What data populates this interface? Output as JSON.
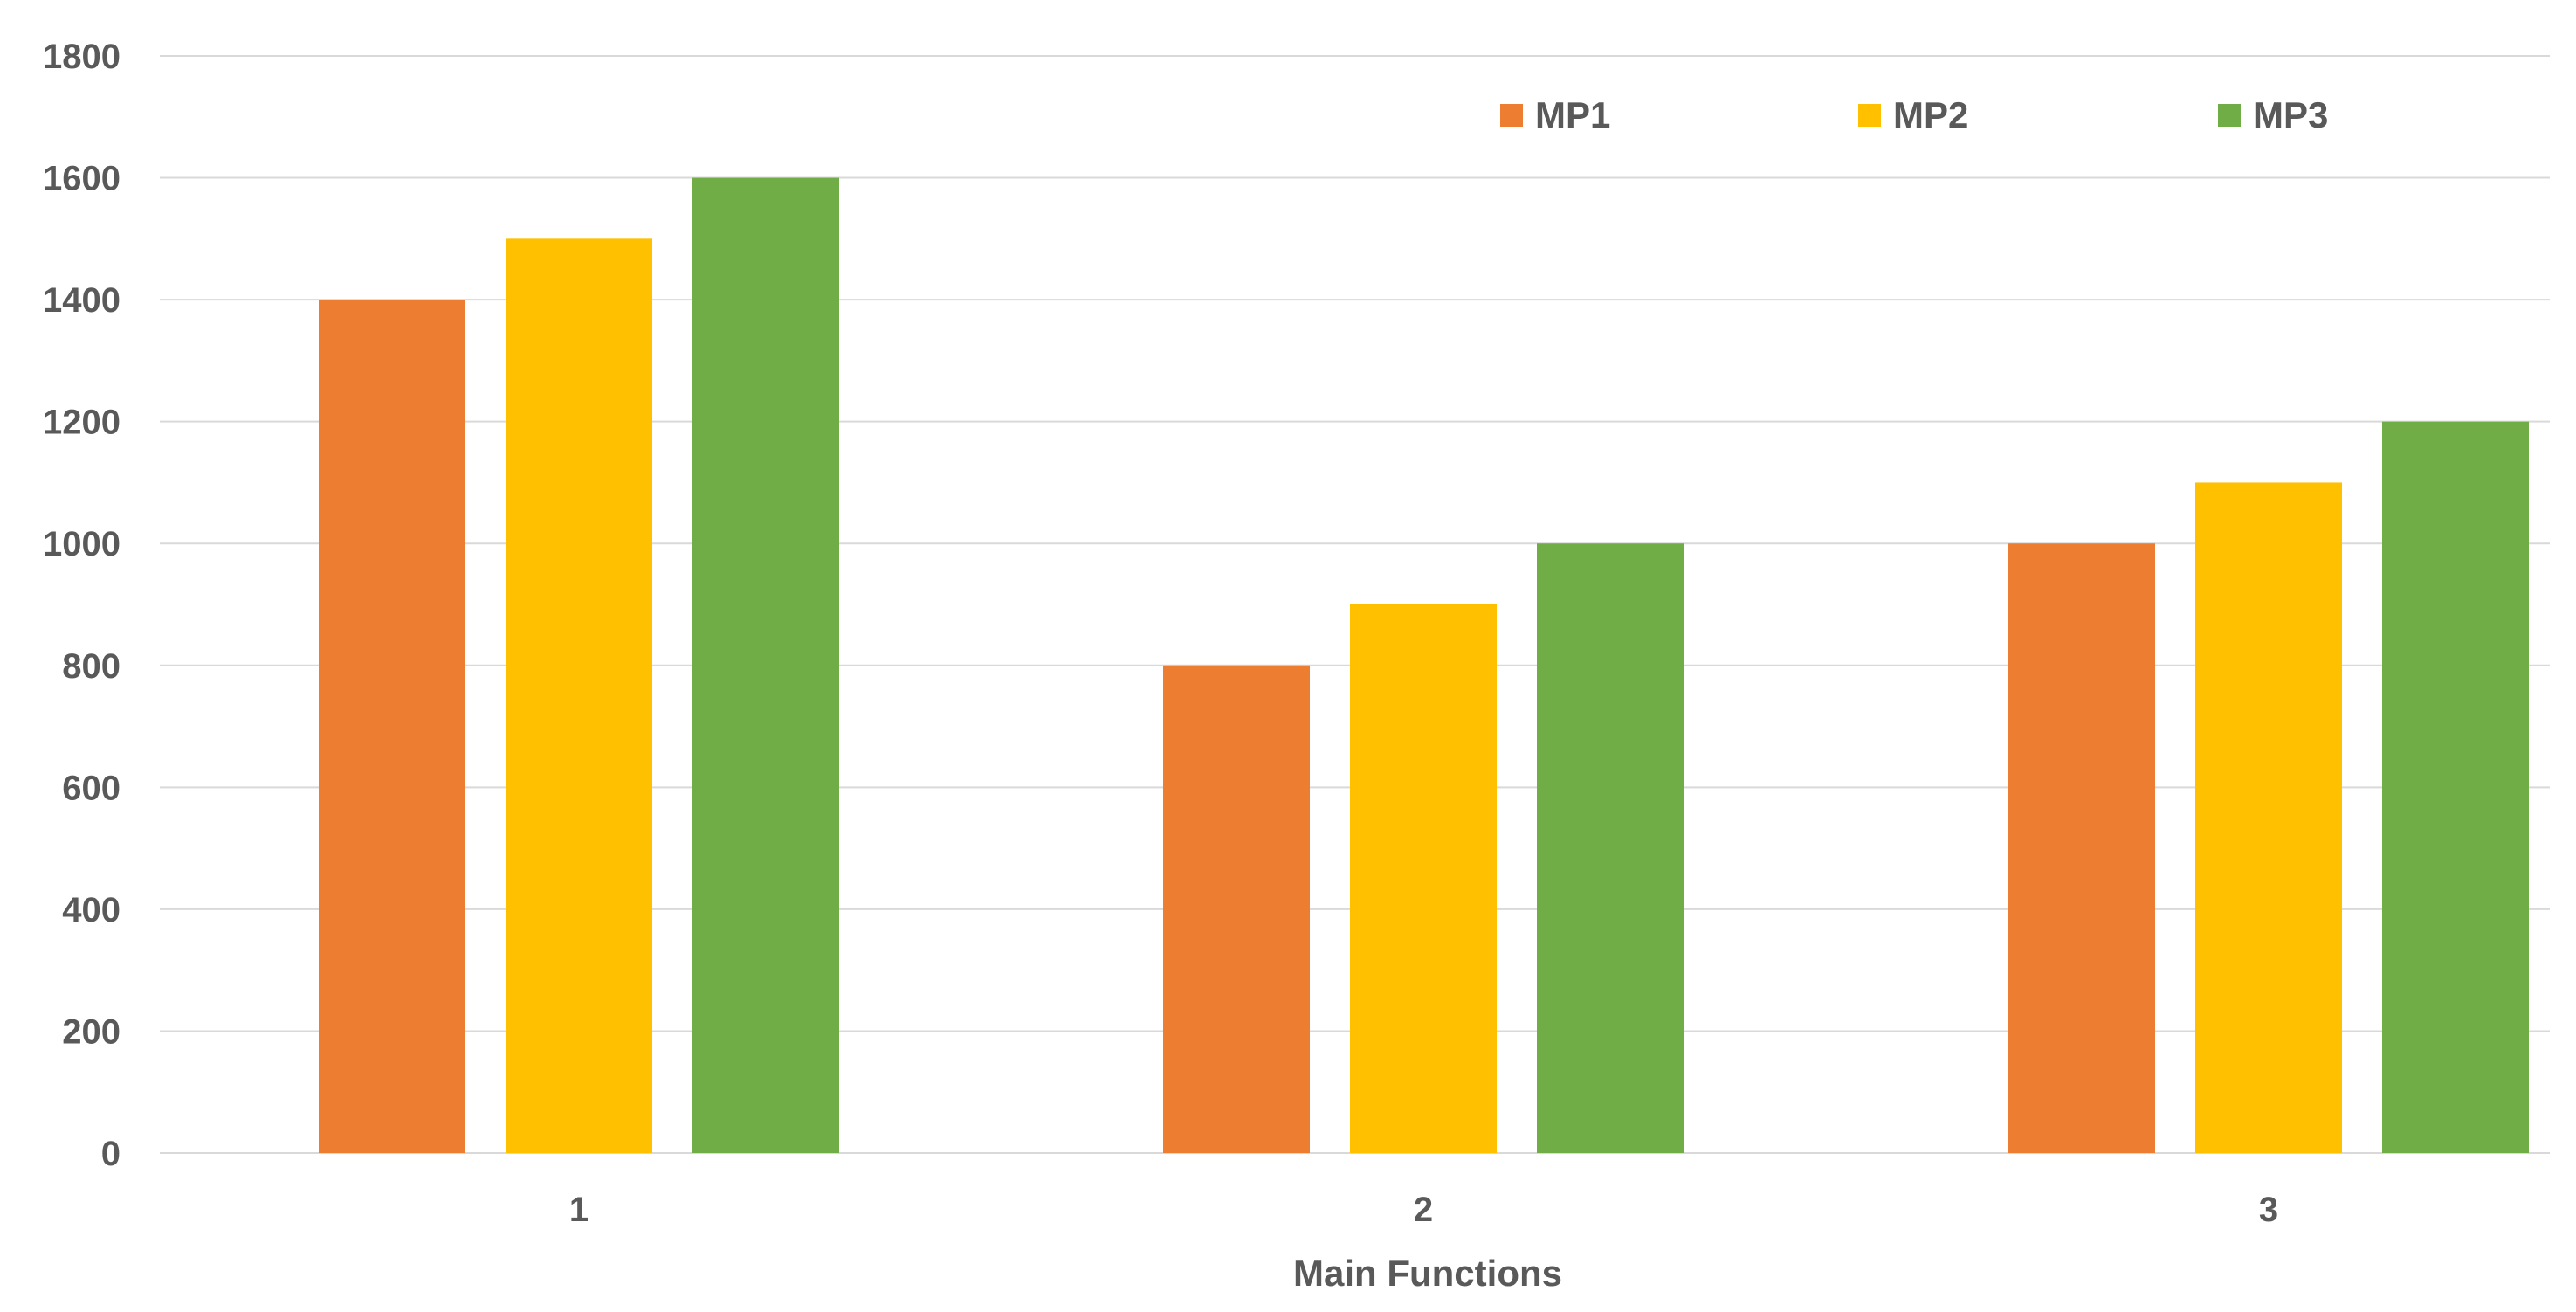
{
  "chart_data": {
    "type": "bar",
    "xlabel": "Main Functions",
    "ylabel": "",
    "categories": [
      "1",
      "2",
      "3"
    ],
    "series": [
      {
        "name": "MP1",
        "color": "#ED7D31",
        "values": [
          1400,
          800,
          1000
        ]
      },
      {
        "name": "MP2",
        "color": "#FFC000",
        "values": [
          1500,
          900,
          1100
        ]
      },
      {
        "name": "MP3",
        "color": "#70AD47",
        "values": [
          1600,
          1000,
          1200
        ]
      }
    ],
    "ylim": [
      0,
      1800
    ],
    "yticks": [
      "0",
      "200",
      "400",
      "600",
      "800",
      "1000",
      "1200",
      "1400",
      "1600",
      "1800"
    ],
    "grid": true,
    "legend_position": "top-right",
    "gridline_color": "#D9D9D9",
    "text_color": "#595959"
  }
}
